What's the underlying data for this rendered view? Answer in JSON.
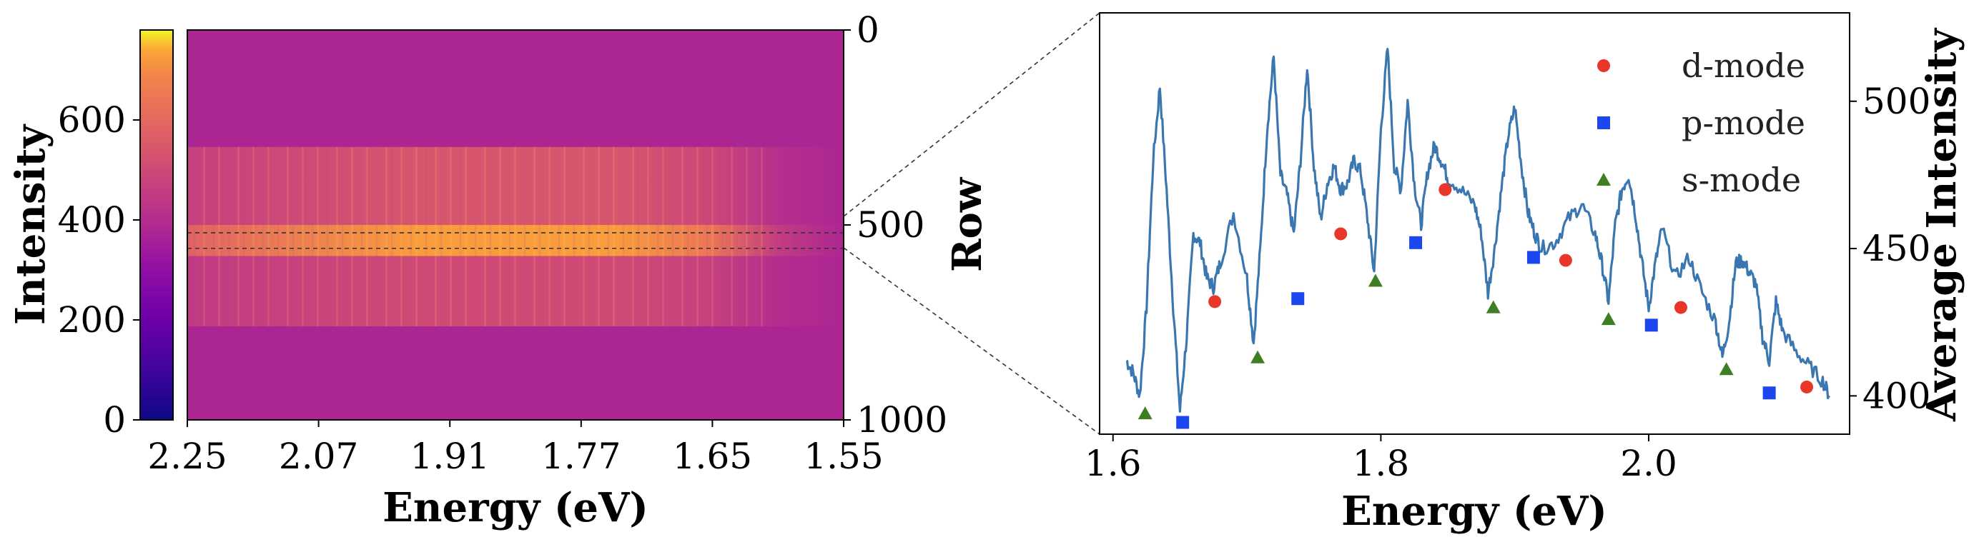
{
  "chart_data": [
    {
      "type": "heatmap",
      "title": "",
      "xlabel": "Energy (eV)",
      "ylabel": "Row",
      "x_ticks": [
        "2.25",
        "2.07",
        "1.91",
        "1.77",
        "1.65",
        "1.55"
      ],
      "y_ticks": [
        "0",
        "500",
        "1000"
      ],
      "ylim": [
        1000,
        0
      ],
      "colormap": "plasma",
      "colorbar": {
        "label": "Intensity",
        "range": [
          0,
          780
        ],
        "ticks": [
          "0",
          "200",
          "400",
          "600"
        ]
      },
      "highlight_rows": [
        520,
        560
      ],
      "bands": [
        {
          "row_start": 300,
          "row_end": 500,
          "intensity": 430
        },
        {
          "row_start": 500,
          "row_end": 580,
          "intensity": 600
        },
        {
          "row_start": 580,
          "row_end": 760,
          "intensity": 400
        }
      ],
      "background_intensity": 300,
      "colors": {
        "low": "#0d0887",
        "mid": "#cc4778",
        "high": "#f0f921"
      }
    },
    {
      "type": "line",
      "title": "",
      "xlabel": "Energy (eV)",
      "ylabel": "Average Intensity",
      "xlim": [
        1.59,
        2.15
      ],
      "ylim": [
        387,
        530
      ],
      "x_ticks": [
        "1.6",
        "1.8",
        "2.0"
      ],
      "y_ticks": [
        "400",
        "450",
        "500"
      ],
      "line_color": "#3a76b0",
      "spectrum": {
        "x": [
          1.61,
          1.615,
          1.62,
          1.625,
          1.63,
          1.635,
          1.64,
          1.645,
          1.65,
          1.655,
          1.66,
          1.665,
          1.67,
          1.675,
          1.68,
          1.69,
          1.7,
          1.705,
          1.71,
          1.715,
          1.72,
          1.725,
          1.73,
          1.735,
          1.74,
          1.745,
          1.75,
          1.755,
          1.76,
          1.765,
          1.77,
          1.775,
          1.78,
          1.785,
          1.79,
          1.795,
          1.8,
          1.805,
          1.81,
          1.815,
          1.82,
          1.825,
          1.83,
          1.835,
          1.84,
          1.845,
          1.85,
          1.86,
          1.87,
          1.875,
          1.88,
          1.885,
          1.89,
          1.895,
          1.9,
          1.905,
          1.91,
          1.915,
          1.92,
          1.93,
          1.94,
          1.95,
          1.96,
          1.965,
          1.97,
          1.975,
          1.98,
          1.985,
          1.99,
          1.995,
          2.0,
          2.005,
          2.01,
          2.02,
          2.03,
          2.04,
          2.05,
          2.055,
          2.06,
          2.065,
          2.07,
          2.075,
          2.08,
          2.085,
          2.09,
          2.095,
          2.1,
          2.11,
          2.12,
          2.13,
          2.135
        ],
        "y": [
          412,
          408,
          400,
          430,
          480,
          505,
          470,
          430,
          395,
          420,
          455,
          452,
          440,
          437,
          445,
          462,
          440,
          418,
          450,
          490,
          515,
          475,
          468,
          455,
          480,
          512,
          478,
          460,
          472,
          478,
          470,
          472,
          480,
          476,
          460,
          442,
          490,
          518,
          478,
          470,
          500,
          472,
          458,
          476,
          485,
          480,
          474,
          470,
          465,
          455,
          435,
          450,
          470,
          488,
          498,
          478,
          462,
          455,
          450,
          452,
          460,
          465,
          455,
          445,
          432,
          458,
          470,
          475,
          462,
          445,
          430,
          445,
          457,
          440,
          447,
          435,
          425,
          413,
          425,
          445,
          446,
          442,
          438,
          420,
          412,
          432,
          422,
          415,
          410,
          405,
          400
        ]
      },
      "markers": [
        {
          "name": "d-mode",
          "shape": "circle",
          "color": "#e8362b",
          "x": [
            1.676,
            1.77,
            1.848,
            1.938,
            2.024,
            2.118
          ],
          "y": [
            432,
            455,
            470,
            446,
            430,
            403
          ]
        },
        {
          "name": "p-mode",
          "shape": "square",
          "color": "#1b46f0",
          "x": [
            1.652,
            1.738,
            1.826,
            1.914,
            2.002,
            2.09
          ],
          "y": [
            391,
            433,
            452,
            447,
            424,
            401
          ]
        },
        {
          "name": "s-mode",
          "shape": "triangle",
          "color": "#3f7f24",
          "x": [
            1.624,
            1.708,
            1.796,
            1.884,
            1.97,
            2.058
          ],
          "y": [
            394,
            413,
            439,
            430,
            426,
            409
          ]
        }
      ],
      "legend_position": "top-right"
    }
  ]
}
